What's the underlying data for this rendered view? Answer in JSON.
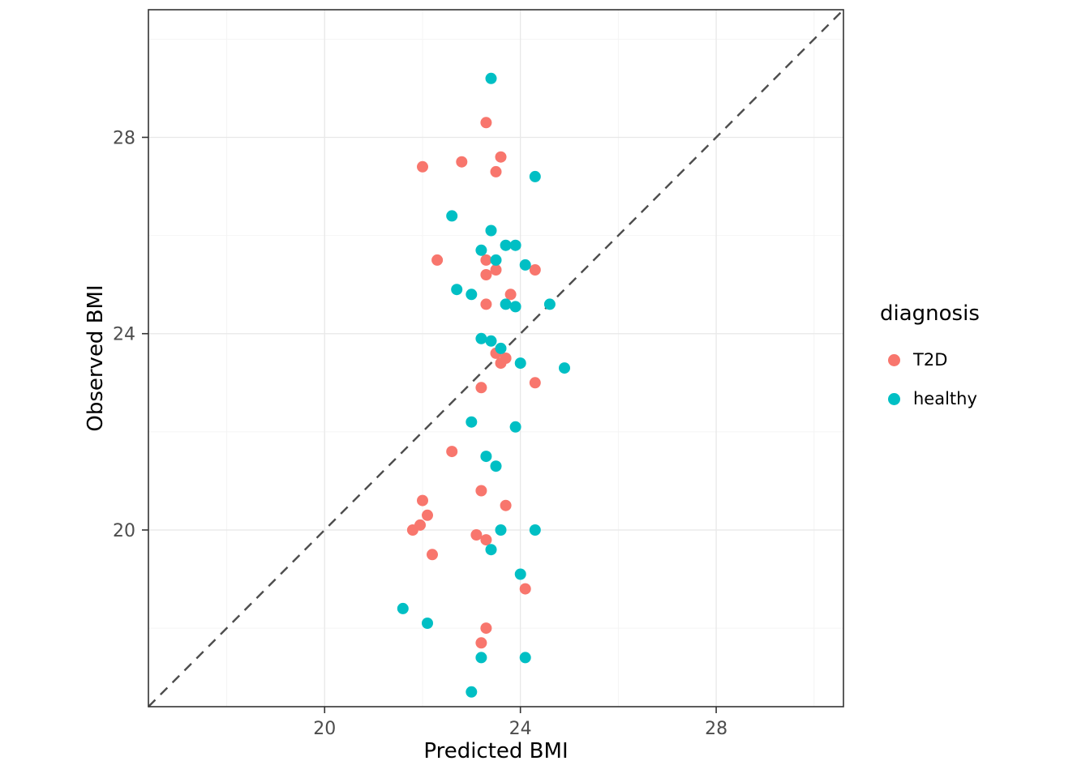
{
  "chart_data": {
    "type": "scatter",
    "title": "",
    "xlabel": "Predicted BMI",
    "ylabel": "Observed BMI",
    "xlim": [
      16.4,
      30.6
    ],
    "ylim": [
      16.4,
      30.6
    ],
    "x_ticks": [
      20,
      24,
      28
    ],
    "y_ticks": [
      20,
      24,
      28
    ],
    "x_minor": [
      18,
      22,
      26,
      30
    ],
    "y_minor": [
      18,
      22,
      26,
      30
    ],
    "grid": true,
    "identity_line": {
      "style": "dashed",
      "color": "#4D4D4D"
    },
    "legend": {
      "title": "diagnosis",
      "position": "right",
      "items": [
        {
          "label": "T2D",
          "color": "#F8766D"
        },
        {
          "label": "healthy",
          "color": "#00BFC4"
        }
      ]
    },
    "series": [
      {
        "name": "T2D",
        "color": "#F8766D",
        "points": [
          [
            23.3,
            28.3
          ],
          [
            22.0,
            27.4
          ],
          [
            22.8,
            27.5
          ],
          [
            23.6,
            27.6
          ],
          [
            23.5,
            27.3
          ],
          [
            22.3,
            25.5
          ],
          [
            23.3,
            25.5
          ],
          [
            23.3,
            25.2
          ],
          [
            23.5,
            25.3
          ],
          [
            24.3,
            25.3
          ],
          [
            23.3,
            24.6
          ],
          [
            23.8,
            24.8
          ],
          [
            23.5,
            23.6
          ],
          [
            23.6,
            23.4
          ],
          [
            23.7,
            23.5
          ],
          [
            24.3,
            23.0
          ],
          [
            23.2,
            22.9
          ],
          [
            22.6,
            21.6
          ],
          [
            23.2,
            20.8
          ],
          [
            22.0,
            20.6
          ],
          [
            23.7,
            20.5
          ],
          [
            22.1,
            20.3
          ],
          [
            21.95,
            20.1
          ],
          [
            21.8,
            20.0
          ],
          [
            23.1,
            19.9
          ],
          [
            23.3,
            19.8
          ],
          [
            22.2,
            19.5
          ],
          [
            24.1,
            18.8
          ],
          [
            23.3,
            18.0
          ],
          [
            23.2,
            17.7
          ]
        ]
      },
      {
        "name": "healthy",
        "color": "#00BFC4",
        "points": [
          [
            23.4,
            29.2
          ],
          [
            24.3,
            27.2
          ],
          [
            22.6,
            26.4
          ],
          [
            23.4,
            26.1
          ],
          [
            23.2,
            25.7
          ],
          [
            23.7,
            25.8
          ],
          [
            23.9,
            25.8
          ],
          [
            23.5,
            25.5
          ],
          [
            24.1,
            25.4
          ],
          [
            22.7,
            24.9
          ],
          [
            23.0,
            24.8
          ],
          [
            23.7,
            24.6
          ],
          [
            23.9,
            24.55
          ],
          [
            24.6,
            24.6
          ],
          [
            23.2,
            23.9
          ],
          [
            23.4,
            23.85
          ],
          [
            23.6,
            23.7
          ],
          [
            24.0,
            23.4
          ],
          [
            24.9,
            23.3
          ],
          [
            23.0,
            22.2
          ],
          [
            23.9,
            22.1
          ],
          [
            23.3,
            21.5
          ],
          [
            23.5,
            21.3
          ],
          [
            23.6,
            20.0
          ],
          [
            24.3,
            20.0
          ],
          [
            23.4,
            19.6
          ],
          [
            24.0,
            19.1
          ],
          [
            21.6,
            18.4
          ],
          [
            22.1,
            18.1
          ],
          [
            23.2,
            17.4
          ],
          [
            24.1,
            17.4
          ],
          [
            23.0,
            16.7
          ]
        ]
      }
    ]
  }
}
